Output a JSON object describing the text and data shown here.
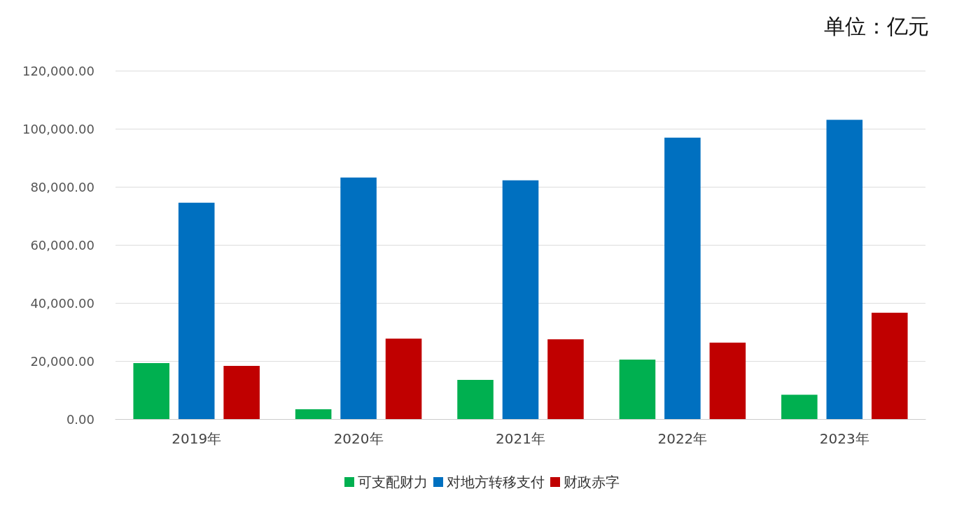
{
  "chart_data": {
    "type": "bar",
    "categories": [
      "2019年",
      "2020年",
      "2021年",
      "2022年",
      "2023年"
    ],
    "series": [
      {
        "name": "可支配财力",
        "color": "#00b050",
        "values": [
          19300,
          3400,
          13500,
          20500,
          8400
        ]
      },
      {
        "name": "对地方转移支付",
        "color": "#0070c0",
        "values": [
          74500,
          83200,
          82200,
          96900,
          103100
        ]
      },
      {
        "name": "财政赤字",
        "color": "#c00000",
        "values": [
          18300,
          27700,
          27500,
          26300,
          36600
        ]
      }
    ],
    "ylim": [
      0,
      120000
    ],
    "yticks": [
      {
        "value": 0,
        "label": "0.00"
      },
      {
        "value": 20000,
        "label": "20,000.00"
      },
      {
        "value": 40000,
        "label": "40,000.00"
      },
      {
        "value": 60000,
        "label": "60,000.00"
      },
      {
        "value": 80000,
        "label": "80,000.00"
      },
      {
        "value": 100000,
        "label": "100,000.00"
      },
      {
        "value": 120000,
        "label": "120,000.00"
      }
    ],
    "grid": "y",
    "legend": "bottom",
    "annotations": [
      "单位：亿元"
    ]
  }
}
